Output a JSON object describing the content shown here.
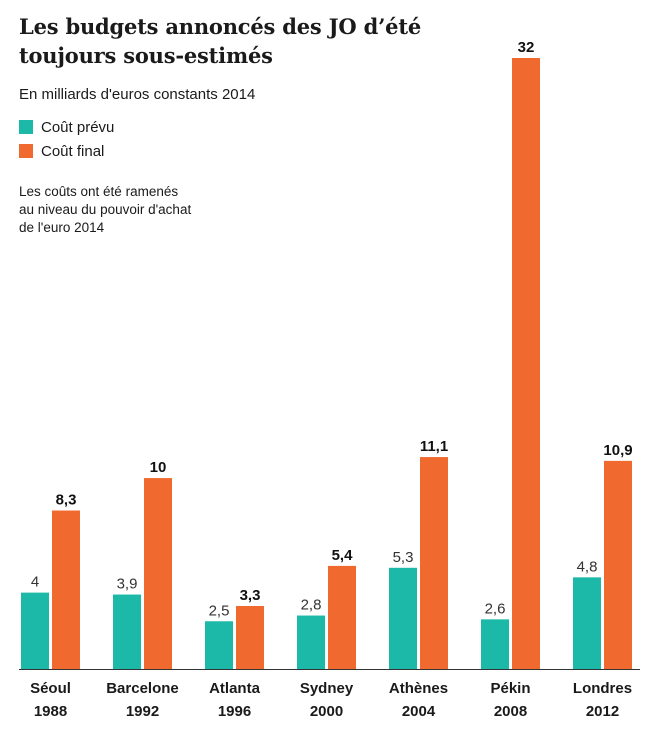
{
  "title_line1": "Les budgets annoncés des JO d’été",
  "title_line2": "toujours sous-estimés",
  "subtitle": "En milliards d'euros constants 2014",
  "legend": [
    {
      "label": "Coût prévu",
      "color": "#1cb8a8"
    },
    {
      "label": "Coût final",
      "color": "#f06a30"
    }
  ],
  "note": [
    "Les coûts ont été ramenés",
    "au niveau du pouvoir d'achat",
    "de l'euro 2014"
  ],
  "chart_data": {
    "type": "bar",
    "title": "Les budgets annoncés des JO d’été toujours sous-estimés",
    "ylabel": "En milliards d'euros constants 2014",
    "categories": [
      {
        "city": "Séoul",
        "year": "1988"
      },
      {
        "city": "Barcelone",
        "year": "1992"
      },
      {
        "city": "Atlanta",
        "year": "1996"
      },
      {
        "city": "Sydney",
        "year": "2000"
      },
      {
        "city": "Athènes",
        "year": "2004"
      },
      {
        "city": "Pékin",
        "year": "2008"
      },
      {
        "city": "Londres",
        "year": "2012"
      }
    ],
    "series": [
      {
        "name": "Coût prévu",
        "color": "#1cb8a8",
        "values": [
          4,
          3.9,
          2.5,
          2.8,
          5.3,
          2.6,
          4.8
        ],
        "labels": [
          "4",
          "3,9",
          "2,5",
          "2,8",
          "5,3",
          "2,6",
          "4,8"
        ]
      },
      {
        "name": "Coût final",
        "color": "#f06a30",
        "values": [
          8.3,
          10,
          3.3,
          5.4,
          11.1,
          32,
          10.9
        ],
        "labels": [
          "8,3",
          "10",
          "3,3",
          "5,4",
          "11,1",
          "32",
          "10,9"
        ]
      }
    ],
    "ylim": [
      0,
      32
    ],
    "grid": false
  }
}
